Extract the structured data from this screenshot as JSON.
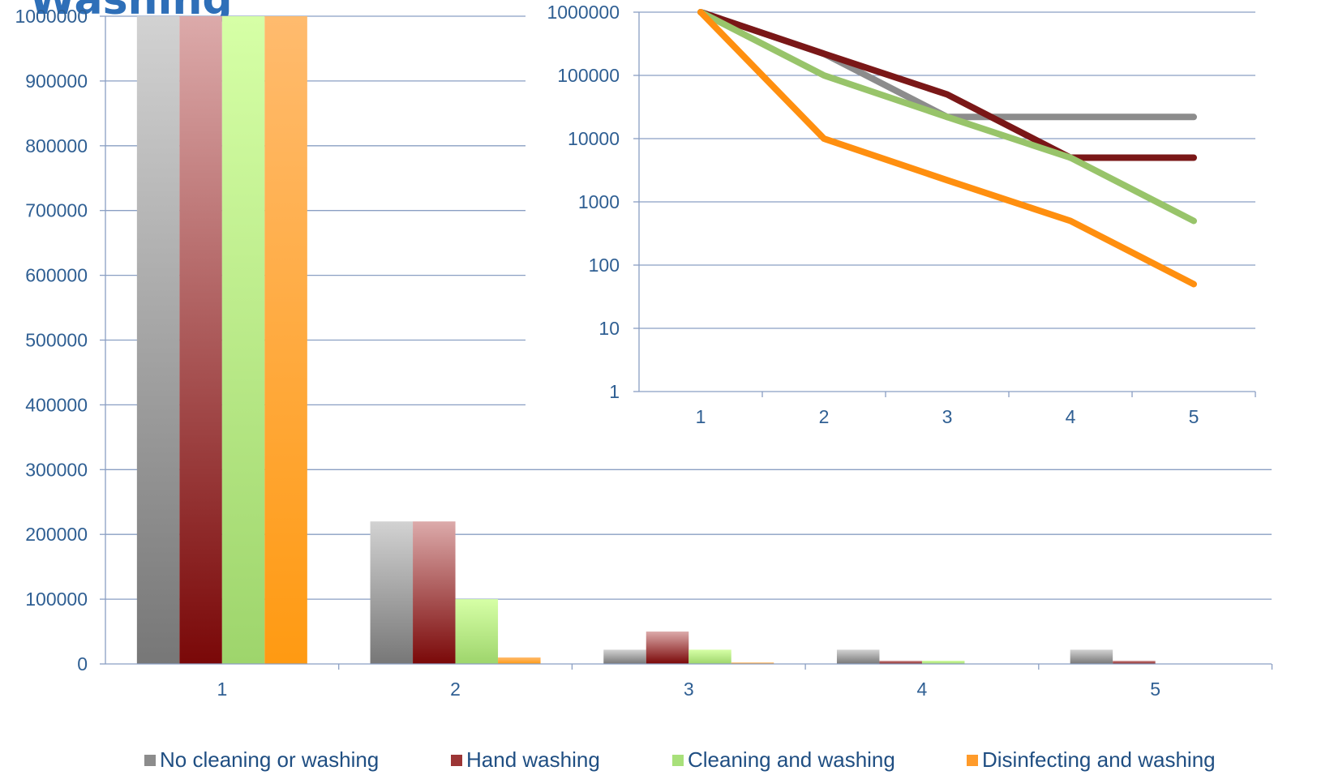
{
  "title": "Washing",
  "chart_data": [
    {
      "type": "bar",
      "categories": [
        "1",
        "2",
        "3",
        "4",
        "5"
      ],
      "ylim": [
        0,
        1000000
      ],
      "yticks": [
        "0",
        "100000",
        "200000",
        "300000",
        "400000",
        "500000",
        "600000",
        "700000",
        "800000",
        "900000",
        "1000000"
      ],
      "grid": true,
      "legend_placement": "bottom",
      "series": [
        {
          "name": "No cleaning or washing",
          "values": [
            1000000,
            220000,
            22000,
            22000,
            22000
          ]
        },
        {
          "name": "Hand washing",
          "values": [
            1000000,
            220000,
            50000,
            5000,
            5000
          ]
        },
        {
          "name": "Cleaning and washing",
          "values": [
            1000000,
            100000,
            22000,
            5000,
            500
          ]
        },
        {
          "name": "Disinfecting and washing",
          "values": [
            1000000,
            10000,
            2200,
            500,
            50
          ]
        }
      ]
    },
    {
      "type": "line",
      "scale": "log",
      "categories": [
        "1",
        "2",
        "3",
        "4",
        "5"
      ],
      "ylim": [
        1,
        1000000
      ],
      "yticks": [
        "1",
        "10",
        "100",
        "1000",
        "10000",
        "100000",
        "1000000"
      ],
      "grid": true,
      "series": [
        {
          "values": [
            1000000,
            220000,
            22000,
            22000,
            22000
          ]
        },
        {
          "values": [
            1000000,
            220000,
            50000,
            5000,
            5000
          ]
        },
        {
          "values": [
            1000000,
            100000,
            22000,
            5000,
            500
          ]
        },
        {
          "values": [
            1000000,
            10000,
            2200,
            500,
            50
          ]
        }
      ]
    }
  ],
  "colors": {
    "gray": "#8c8c8c",
    "red": "#7a1717",
    "green": "#98c46a",
    "orange": "#ff8f0f",
    "axis_text": "#2f5f93",
    "grid": "#8a9fc3"
  },
  "legend_swatch_colors": [
    "#8c8c8c",
    "#9c3535",
    "#a8e07a",
    "#ff9b2a"
  ]
}
